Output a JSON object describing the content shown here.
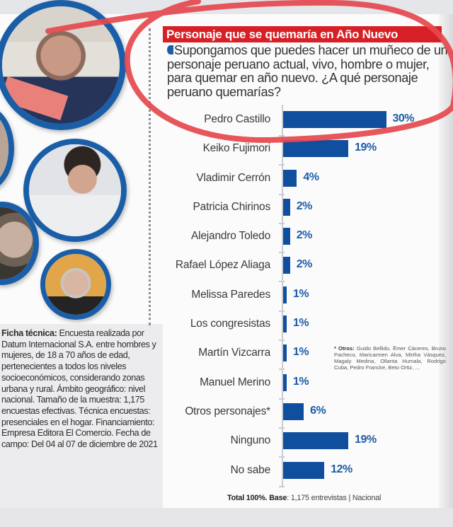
{
  "header": {
    "title": "Personaje que se quemaría en Año Nuevo"
  },
  "question": "Supongamos que puedes hacer un muñeco de un personaje peruano actual, vivo, hombre o mujer, para quemar en año nuevo. ¿A qué personaje peruano quemarías?",
  "chart_data": {
    "type": "bar",
    "orientation": "horizontal",
    "title": "Personaje que se quemaría en Año Nuevo",
    "subtitle": "Supongamos que puedes hacer un muñeco de un personaje peruano actual, vivo, hombre o mujer, para quemar en año nuevo. ¿A qué personaje peruano quemarías?",
    "categories": [
      "Pedro Castillo",
      "Keiko Fujimori",
      "Vladimir Cerrón",
      "Patricia Chirinos",
      "Alejandro Toledo",
      "Rafael López Aliaga",
      "Melissa Paredes",
      "Los congresistas",
      "Martín Vizcarra",
      "Manuel Merino",
      "Otros personajes*",
      "Ninguno",
      "No sabe"
    ],
    "values": [
      30,
      19,
      4,
      2,
      2,
      2,
      1,
      1,
      1,
      1,
      6,
      19,
      12
    ],
    "value_labels": [
      "30%",
      "19%",
      "4%",
      "2%",
      "2%",
      "2%",
      "1%",
      "1%",
      "1%",
      "1%",
      "6%",
      "19%",
      "12%"
    ],
    "unit": "%",
    "xlabel": "",
    "ylabel": "",
    "xlim": [
      0,
      35
    ],
    "grid": false,
    "bar_color": "#0f4f9e",
    "label_color": "#1d5ca8",
    "annotation": "* Otros: Guido Bellido, Ēmer Cáceres, Bruno Pacheco, Maricarmen Alva, Mirtha Vásquez, Magaly Medina, Ollanta Humala, Rodrigo Cuba, Pedro Francke, Beto Ortiz, ...",
    "note": "Total 100%. Base: 1,175 entrevistas | Nacional"
  },
  "rows": [
    {
      "label": "Pedro Castillo",
      "value": 30,
      "text": "30%"
    },
    {
      "label": "Keiko Fujimori",
      "value": 19,
      "text": "19%"
    },
    {
      "label": "Vladimir Cerrón",
      "value": 4,
      "text": "4%"
    },
    {
      "label": "Patricia Chirinos",
      "value": 2,
      "text": "2%"
    },
    {
      "label": "Alejandro Toledo",
      "value": 2,
      "text": "2%"
    },
    {
      "label": "Rafael López Aliaga",
      "value": 2,
      "text": "2%"
    },
    {
      "label": "Melissa Paredes",
      "value": 1,
      "text": "1%"
    },
    {
      "label": "Los congresistas",
      "value": 1,
      "text": "1%"
    },
    {
      "label": "Martín Vizcarra",
      "value": 1,
      "text": "1%"
    },
    {
      "label": "Manuel Merino",
      "value": 1,
      "text": "1%"
    },
    {
      "label": "Otros personajes*",
      "value": 6,
      "text": "6%"
    },
    {
      "label": "Ninguno",
      "value": 19,
      "text": "19%"
    },
    {
      "label": "No sabe",
      "value": 12,
      "text": "12%"
    }
  ],
  "footnote": {
    "label": "* Otros:",
    "text": "Guido Bellido, Ēmer Cáceres, Bruno Pacheco, Maricarmen Alva, Mirtha Vásquez, Magaly Medina, Ollanta Humala, Rodrigo Cuba, Pedro Francke, Beto Ortiz, ..."
  },
  "total": {
    "bold": "Total 100%. Base",
    "text": ": 1,175 entrevistas | Nacional"
  },
  "ficha": {
    "label": "Ficha técnica:",
    "text": "Encuesta realizada por Datum Internacional S.A. entre hombres y mujeres, de 18 a 70 años de edad, pertenecientes a todos los niveles socioeconómicos, considerando zonas urbana y rural. Ámbito geográfico: nivel nacional. Tamaño de la muestra: 1,175 encuestas efectivas. Técnica encuestas: presenciales en el hogar. Financiamiento: Empresa Editora El Comercio. Fecha de campo: Del 04 al 07 de diciembre de 2021"
  },
  "colors": {
    "header_red": "#d71f26",
    "bar_blue": "#0f4f9e",
    "bubble_blue": "#1b5ea8",
    "annotation_red": "#e5484d"
  }
}
